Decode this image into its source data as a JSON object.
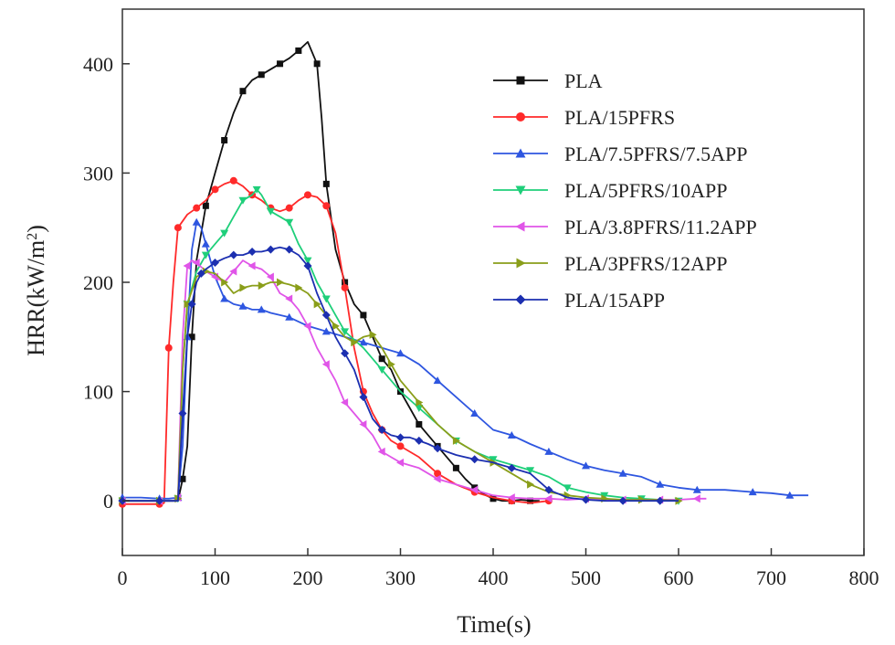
{
  "chart_data": {
    "type": "line",
    "title": "",
    "xlabel": "Time(s)",
    "ylabel_main": "HRR(kW/m",
    "ylabel_sup": "2",
    "ylabel_close": ")",
    "xlim": [
      0,
      800
    ],
    "ylim": [
      -50,
      450
    ],
    "xticks": [
      0,
      100,
      200,
      300,
      400,
      500,
      600,
      700,
      800
    ],
    "yticks": [
      0,
      100,
      200,
      300,
      400
    ],
    "grid": false,
    "legend_position": "top-right",
    "series": [
      {
        "name": "PLA",
        "color": "#111111",
        "marker": "square",
        "x": [
          0,
          20,
          40,
          60,
          65,
          70,
          75,
          80,
          90,
          100,
          110,
          120,
          130,
          140,
          150,
          160,
          170,
          180,
          190,
          200,
          210,
          215,
          220,
          230,
          240,
          250,
          260,
          270,
          280,
          290,
          300,
          310,
          320,
          330,
          340,
          350,
          360,
          370,
          380,
          390,
          400,
          410,
          420,
          430,
          440,
          450
        ],
        "y": [
          0,
          0,
          0,
          0,
          20,
          50,
          150,
          220,
          270,
          300,
          330,
          355,
          375,
          385,
          390,
          395,
          400,
          405,
          412,
          420,
          400,
          350,
          290,
          230,
          200,
          180,
          170,
          150,
          130,
          120,
          100,
          85,
          70,
          60,
          50,
          40,
          30,
          20,
          12,
          6,
          2,
          0,
          0,
          1,
          0,
          0
        ]
      },
      {
        "name": "PLA/15PFRS",
        "color": "#ff2a2a",
        "marker": "circle",
        "x": [
          0,
          20,
          40,
          45,
          50,
          55,
          60,
          70,
          80,
          90,
          100,
          110,
          120,
          130,
          140,
          150,
          160,
          170,
          180,
          190,
          200,
          210,
          220,
          230,
          240,
          250,
          260,
          270,
          280,
          290,
          300,
          320,
          340,
          360,
          380,
          400,
          420,
          440,
          460
        ],
        "y": [
          -3,
          -3,
          -3,
          -2,
          140,
          200,
          250,
          262,
          268,
          275,
          285,
          290,
          293,
          288,
          280,
          275,
          268,
          265,
          268,
          275,
          280,
          278,
          270,
          245,
          195,
          140,
          100,
          80,
          65,
          55,
          50,
          40,
          25,
          15,
          8,
          3,
          0,
          -2,
          0
        ]
      },
      {
        "name": "PLA/7.5PFRS/7.5APP",
        "color": "#2e56e0",
        "marker": "triangle-up",
        "x": [
          0,
          20,
          40,
          50,
          60,
          65,
          70,
          75,
          80,
          85,
          90,
          100,
          110,
          120,
          130,
          140,
          150,
          160,
          180,
          200,
          220,
          240,
          260,
          280,
          300,
          320,
          340,
          360,
          380,
          400,
          420,
          440,
          460,
          480,
          500,
          520,
          540,
          560,
          580,
          600,
          620,
          650,
          680,
          700,
          720,
          740
        ],
        "y": [
          3,
          3,
          2,
          2,
          3,
          50,
          150,
          230,
          255,
          250,
          235,
          205,
          185,
          180,
          178,
          175,
          175,
          172,
          168,
          160,
          155,
          150,
          145,
          140,
          135,
          125,
          110,
          95,
          80,
          65,
          60,
          52,
          45,
          38,
          32,
          28,
          25,
          22,
          15,
          12,
          10,
          10,
          8,
          7,
          5,
          5
        ]
      },
      {
        "name": "PLA/5PFRS/10APP",
        "color": "#1fcf7a",
        "marker": "triangle-down",
        "x": [
          0,
          20,
          40,
          55,
          60,
          65,
          70,
          80,
          90,
          100,
          110,
          120,
          130,
          140,
          145,
          150,
          160,
          170,
          180,
          190,
          200,
          210,
          220,
          230,
          240,
          260,
          280,
          300,
          320,
          340,
          360,
          380,
          400,
          420,
          440,
          460,
          480,
          500,
          520,
          540,
          560,
          580,
          600
        ],
        "y": [
          0,
          0,
          0,
          0,
          2,
          120,
          180,
          210,
          225,
          235,
          245,
          260,
          275,
          280,
          285,
          280,
          265,
          260,
          255,
          235,
          220,
          200,
          185,
          170,
          155,
          140,
          120,
          100,
          85,
          70,
          55,
          45,
          38,
          33,
          28,
          22,
          12,
          8,
          5,
          3,
          2,
          1,
          0
        ]
      },
      {
        "name": "PLA/3.8PFRS/11.2APP",
        "color": "#e055e8",
        "marker": "triangle-left",
        "x": [
          0,
          20,
          40,
          55,
          60,
          65,
          70,
          75,
          80,
          90,
          100,
          110,
          120,
          130,
          140,
          150,
          160,
          170,
          180,
          190,
          200,
          210,
          220,
          230,
          240,
          250,
          260,
          270,
          280,
          290,
          300,
          320,
          340,
          360,
          380,
          400,
          420,
          440,
          460,
          480,
          500,
          520,
          540,
          560,
          580,
          600,
          620,
          630
        ],
        "y": [
          0,
          0,
          0,
          0,
          3,
          150,
          215,
          220,
          218,
          210,
          205,
          200,
          210,
          220,
          215,
          212,
          205,
          190,
          185,
          175,
          160,
          140,
          125,
          110,
          90,
          80,
          70,
          60,
          45,
          40,
          35,
          30,
          20,
          15,
          10,
          5,
          3,
          2,
          2,
          1,
          2,
          1,
          1,
          1,
          1,
          1,
          2,
          2
        ]
      },
      {
        "name": "PLA/3PFRS/12APP",
        "color": "#8a9e1a",
        "marker": "triangle-right",
        "x": [
          0,
          20,
          40,
          55,
          60,
          65,
          70,
          80,
          90,
          100,
          110,
          120,
          130,
          140,
          150,
          160,
          170,
          180,
          190,
          200,
          210,
          220,
          230,
          240,
          250,
          260,
          270,
          280,
          290,
          300,
          320,
          340,
          360,
          380,
          400,
          420,
          440,
          460,
          480,
          500,
          520,
          540,
          560,
          580,
          600
        ],
        "y": [
          0,
          0,
          0,
          0,
          2,
          120,
          180,
          205,
          210,
          208,
          200,
          190,
          195,
          197,
          197,
          200,
          200,
          198,
          195,
          190,
          180,
          170,
          160,
          150,
          145,
          150,
          152,
          140,
          125,
          110,
          90,
          70,
          55,
          45,
          35,
          25,
          15,
          8,
          5,
          3,
          2,
          1,
          1,
          1,
          0
        ]
      },
      {
        "name": "PLA/15APP",
        "color": "#1c2fb0",
        "marker": "diamond",
        "x": [
          0,
          20,
          40,
          60,
          65,
          70,
          75,
          80,
          85,
          90,
          100,
          110,
          120,
          130,
          140,
          150,
          160,
          170,
          180,
          190,
          200,
          210,
          220,
          230,
          240,
          250,
          260,
          270,
          280,
          290,
          300,
          310,
          320,
          330,
          340,
          360,
          380,
          400,
          420,
          440,
          460,
          480,
          500,
          520,
          540,
          560,
          580,
          600
        ],
        "y": [
          0,
          0,
          0,
          0,
          80,
          150,
          180,
          200,
          208,
          212,
          218,
          222,
          225,
          225,
          228,
          228,
          230,
          232,
          230,
          225,
          215,
          190,
          170,
          150,
          135,
          120,
          95,
          75,
          65,
          60,
          58,
          58,
          55,
          52,
          48,
          42,
          38,
          35,
          30,
          25,
          10,
          3,
          1,
          0,
          0,
          0,
          0,
          0
        ]
      }
    ]
  }
}
